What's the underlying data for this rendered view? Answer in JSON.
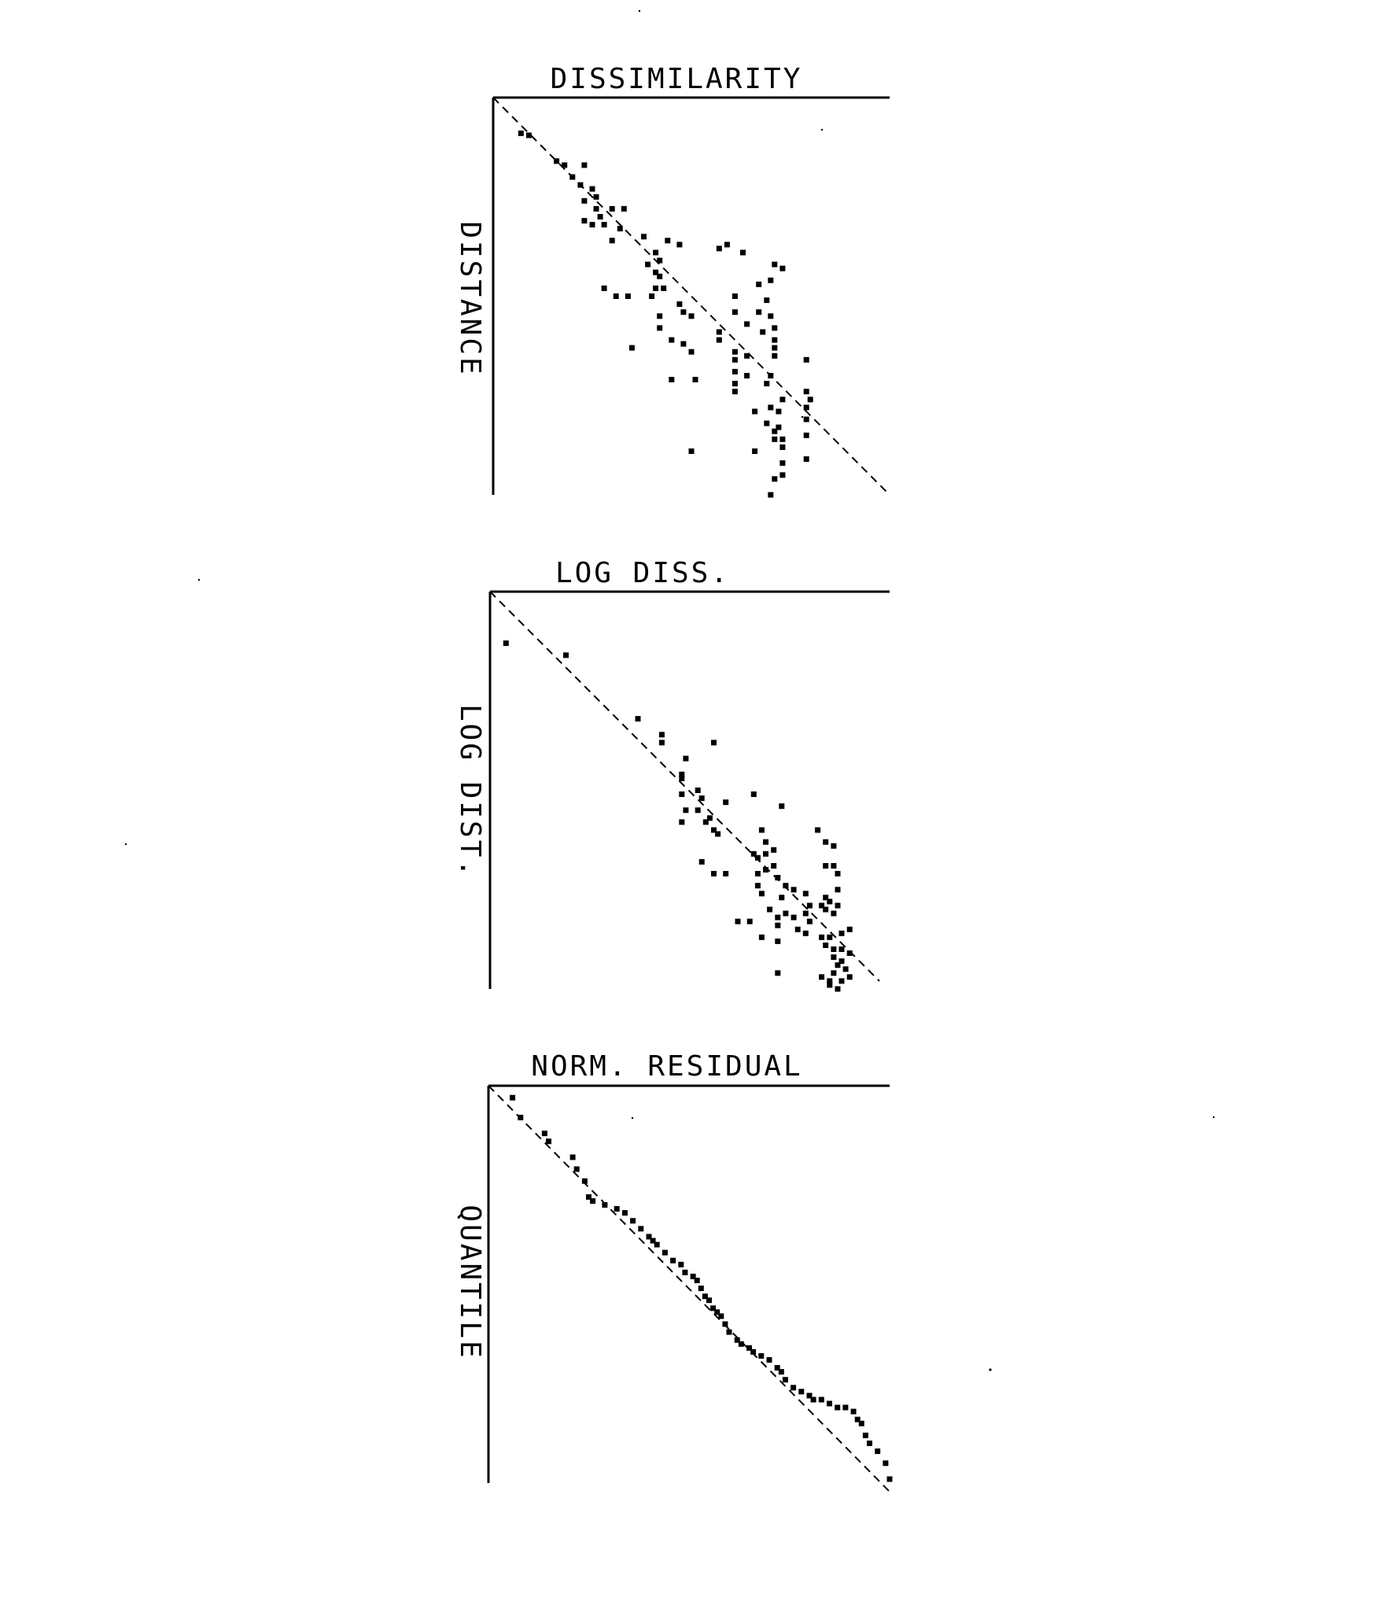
{
  "chart_data": [
    {
      "type": "scatter",
      "title": "DISSIMILARITY",
      "xlabel": "",
      "ylabel": "DISTANCE",
      "grid": false,
      "reference_line": "dashed diagonal",
      "points": [
        [
          0.07,
          0.91
        ],
        [
          0.09,
          0.905
        ],
        [
          0.16,
          0.84
        ],
        [
          0.18,
          0.83
        ],
        [
          0.23,
          0.83
        ],
        [
          0.2,
          0.8
        ],
        [
          0.22,
          0.78
        ],
        [
          0.25,
          0.77
        ],
        [
          0.26,
          0.75
        ],
        [
          0.23,
          0.74
        ],
        [
          0.26,
          0.72
        ],
        [
          0.3,
          0.72
        ],
        [
          0.33,
          0.72
        ],
        [
          0.27,
          0.7
        ],
        [
          0.23,
          0.69
        ],
        [
          0.25,
          0.68
        ],
        [
          0.28,
          0.68
        ],
        [
          0.32,
          0.67
        ],
        [
          0.38,
          0.65
        ],
        [
          0.3,
          0.64
        ],
        [
          0.44,
          0.64
        ],
        [
          0.47,
          0.63
        ],
        [
          0.41,
          0.61
        ],
        [
          0.42,
          0.59
        ],
        [
          0.57,
          0.62
        ],
        [
          0.59,
          0.63
        ],
        [
          0.63,
          0.61
        ],
        [
          0.39,
          0.58
        ],
        [
          0.41,
          0.56
        ],
        [
          0.42,
          0.55
        ],
        [
          0.41,
          0.52
        ],
        [
          0.28,
          0.52
        ],
        [
          0.31,
          0.5
        ],
        [
          0.34,
          0.5
        ],
        [
          0.4,
          0.5
        ],
        [
          0.43,
          0.52
        ],
        [
          0.47,
          0.48
        ],
        [
          0.48,
          0.46
        ],
        [
          0.61,
          0.5
        ],
        [
          0.71,
          0.58
        ],
        [
          0.73,
          0.57
        ],
        [
          0.7,
          0.54
        ],
        [
          0.67,
          0.53
        ],
        [
          0.69,
          0.49
        ],
        [
          0.42,
          0.45
        ],
        [
          0.5,
          0.45
        ],
        [
          0.61,
          0.46
        ],
        [
          0.67,
          0.46
        ],
        [
          0.7,
          0.45
        ],
        [
          0.64,
          0.43
        ],
        [
          0.42,
          0.42
        ],
        [
          0.45,
          0.39
        ],
        [
          0.57,
          0.41
        ],
        [
          0.57,
          0.39
        ],
        [
          0.68,
          0.41
        ],
        [
          0.71,
          0.42
        ],
        [
          0.71,
          0.39
        ],
        [
          0.71,
          0.37
        ],
        [
          0.48,
          0.38
        ],
        [
          0.5,
          0.36
        ],
        [
          0.35,
          0.37
        ],
        [
          0.61,
          0.36
        ],
        [
          0.61,
          0.34
        ],
        [
          0.64,
          0.35
        ],
        [
          0.71,
          0.35
        ],
        [
          0.79,
          0.34
        ],
        [
          0.61,
          0.31
        ],
        [
          0.64,
          0.3
        ],
        [
          0.7,
          0.3
        ],
        [
          0.45,
          0.29
        ],
        [
          0.51,
          0.29
        ],
        [
          0.61,
          0.28
        ],
        [
          0.69,
          0.28
        ],
        [
          0.79,
          0.26
        ],
        [
          0.8,
          0.24
        ],
        [
          0.73,
          0.24
        ],
        [
          0.61,
          0.26
        ],
        [
          0.7,
          0.22
        ],
        [
          0.72,
          0.21
        ],
        [
          0.79,
          0.22
        ],
        [
          0.66,
          0.21
        ],
        [
          0.69,
          0.18
        ],
        [
          0.72,
          0.17
        ],
        [
          0.79,
          0.19
        ],
        [
          0.71,
          0.16
        ],
        [
          0.71,
          0.14
        ],
        [
          0.73,
          0.14
        ],
        [
          0.79,
          0.15
        ],
        [
          0.66,
          0.11
        ],
        [
          0.73,
          0.12
        ],
        [
          0.5,
          0.11
        ],
        [
          0.73,
          0.08
        ],
        [
          0.79,
          0.09
        ],
        [
          0.73,
          0.05
        ],
        [
          0.71,
          0.04
        ],
        [
          0.7,
          0.0
        ]
      ]
    },
    {
      "type": "scatter",
      "title": "LOG DISS.",
      "xlabel": "",
      "ylabel": "LOG DIST.",
      "grid": false,
      "reference_line": "dashed diagonal",
      "points": [
        [
          0.04,
          0.87
        ],
        [
          0.19,
          0.84
        ],
        [
          0.37,
          0.68
        ],
        [
          0.43,
          0.64
        ],
        [
          0.43,
          0.62
        ],
        [
          0.49,
          0.58
        ],
        [
          0.56,
          0.62
        ],
        [
          0.48,
          0.54
        ],
        [
          0.48,
          0.53
        ],
        [
          0.52,
          0.5
        ],
        [
          0.53,
          0.48
        ],
        [
          0.48,
          0.49
        ],
        [
          0.49,
          0.45
        ],
        [
          0.48,
          0.42
        ],
        [
          0.52,
          0.45
        ],
        [
          0.54,
          0.42
        ],
        [
          0.56,
          0.4
        ],
        [
          0.55,
          0.43
        ],
        [
          0.59,
          0.47
        ],
        [
          0.66,
          0.49
        ],
        [
          0.73,
          0.46
        ],
        [
          0.57,
          0.39
        ],
        [
          0.53,
          0.32
        ],
        [
          0.56,
          0.29
        ],
        [
          0.59,
          0.29
        ],
        [
          0.66,
          0.34
        ],
        [
          0.68,
          0.4
        ],
        [
          0.69,
          0.37
        ],
        [
          0.71,
          0.35
        ],
        [
          0.69,
          0.34
        ],
        [
          0.69,
          0.3
        ],
        [
          0.71,
          0.31
        ],
        [
          0.67,
          0.33
        ],
        [
          0.67,
          0.29
        ],
        [
          0.67,
          0.26
        ],
        [
          0.68,
          0.24
        ],
        [
          0.72,
          0.28
        ],
        [
          0.74,
          0.26
        ],
        [
          0.73,
          0.23
        ],
        [
          0.76,
          0.25
        ],
        [
          0.79,
          0.24
        ],
        [
          0.82,
          0.4
        ],
        [
          0.84,
          0.37
        ],
        [
          0.86,
          0.36
        ],
        [
          0.86,
          0.31
        ],
        [
          0.84,
          0.31
        ],
        [
          0.87,
          0.29
        ],
        [
          0.87,
          0.25
        ],
        [
          0.84,
          0.23
        ],
        [
          0.85,
          0.22
        ],
        [
          0.87,
          0.21
        ],
        [
          0.86,
          0.19
        ],
        [
          0.84,
          0.2
        ],
        [
          0.83,
          0.21
        ],
        [
          0.8,
          0.21
        ],
        [
          0.79,
          0.19
        ],
        [
          0.8,
          0.17
        ],
        [
          0.76,
          0.18
        ],
        [
          0.74,
          0.19
        ],
        [
          0.72,
          0.18
        ],
        [
          0.72,
          0.16
        ],
        [
          0.7,
          0.2
        ],
        [
          0.65,
          0.17
        ],
        [
          0.62,
          0.17
        ],
        [
          0.68,
          0.13
        ],
        [
          0.72,
          0.12
        ],
        [
          0.77,
          0.15
        ],
        [
          0.79,
          0.14
        ],
        [
          0.83,
          0.13
        ],
        [
          0.85,
          0.13
        ],
        [
          0.88,
          0.14
        ],
        [
          0.9,
          0.15
        ],
        [
          0.84,
          0.11
        ],
        [
          0.86,
          0.1
        ],
        [
          0.88,
          0.1
        ],
        [
          0.9,
          0.09
        ],
        [
          0.86,
          0.08
        ],
        [
          0.88,
          0.07
        ],
        [
          0.87,
          0.06
        ],
        [
          0.89,
          0.05
        ],
        [
          0.86,
          0.04
        ],
        [
          0.9,
          0.03
        ],
        [
          0.85,
          0.02
        ],
        [
          0.88,
          0.02
        ],
        [
          0.72,
          0.04
        ],
        [
          0.83,
          0.03
        ],
        [
          0.87,
          0.0
        ],
        [
          0.85,
          0.01
        ]
      ]
    },
    {
      "type": "scatter",
      "title": "NORM. RESIDUAL",
      "xlabel": "",
      "ylabel": "QUANTILE",
      "grid": false,
      "reference_line": "dashed diagonal",
      "points": [
        [
          0.06,
          0.97
        ],
        [
          0.08,
          0.92
        ],
        [
          0.14,
          0.88
        ],
        [
          0.15,
          0.86
        ],
        [
          0.21,
          0.82
        ],
        [
          0.22,
          0.79
        ],
        [
          0.24,
          0.76
        ],
        [
          0.25,
          0.72
        ],
        [
          0.26,
          0.71
        ],
        [
          0.29,
          0.7
        ],
        [
          0.32,
          0.69
        ],
        [
          0.34,
          0.68
        ],
        [
          0.36,
          0.66
        ],
        [
          0.38,
          0.64
        ],
        [
          0.4,
          0.62
        ],
        [
          0.41,
          0.61
        ],
        [
          0.42,
          0.6
        ],
        [
          0.44,
          0.58
        ],
        [
          0.46,
          0.56
        ],
        [
          0.48,
          0.55
        ],
        [
          0.49,
          0.53
        ],
        [
          0.51,
          0.52
        ],
        [
          0.52,
          0.51
        ],
        [
          0.53,
          0.49
        ],
        [
          0.54,
          0.47
        ],
        [
          0.55,
          0.46
        ],
        [
          0.56,
          0.44
        ],
        [
          0.57,
          0.43
        ],
        [
          0.58,
          0.42
        ],
        [
          0.59,
          0.4
        ],
        [
          0.6,
          0.38
        ],
        [
          0.62,
          0.36
        ],
        [
          0.63,
          0.35
        ],
        [
          0.65,
          0.34
        ],
        [
          0.66,
          0.33
        ],
        [
          0.68,
          0.32
        ],
        [
          0.7,
          0.31
        ],
        [
          0.72,
          0.29
        ],
        [
          0.73,
          0.28
        ],
        [
          0.74,
          0.26
        ],
        [
          0.76,
          0.24
        ],
        [
          0.78,
          0.23
        ],
        [
          0.8,
          0.22
        ],
        [
          0.81,
          0.21
        ],
        [
          0.83,
          0.21
        ],
        [
          0.85,
          0.2
        ],
        [
          0.87,
          0.19
        ],
        [
          0.89,
          0.19
        ],
        [
          0.91,
          0.18
        ],
        [
          0.92,
          0.16
        ],
        [
          0.93,
          0.15
        ],
        [
          0.94,
          0.12
        ],
        [
          0.95,
          0.1
        ],
        [
          0.97,
          0.08
        ],
        [
          0.99,
          0.05
        ],
        [
          1.0,
          0.01
        ]
      ]
    }
  ]
}
